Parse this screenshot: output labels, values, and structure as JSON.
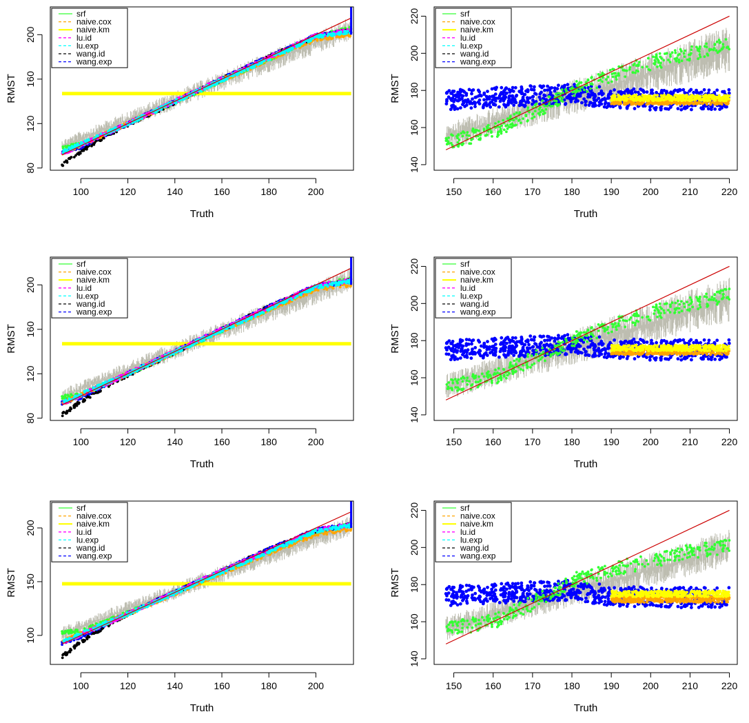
{
  "figure": {
    "description_label": "Six panels of RMST versus Truth",
    "colors": {
      "srf": "#33ff33",
      "naive.cox": "#ffa500",
      "naive.km": "#ffff00",
      "lu.id": "#ff00ff",
      "lu.exp": "#00ffff",
      "wang.id": "#000000",
      "wang.exp": "#0000ff",
      "band": "#bdbdb0",
      "identity": "#cc0000"
    }
  },
  "chart_data": [
    {
      "type": "line",
      "panel": "left-top",
      "xlabel": "Truth",
      "ylabel": "RMST",
      "xlim": [
        87,
        216
      ],
      "ylim": [
        78,
        225
      ],
      "xticks": [
        100,
        120,
        140,
        160,
        180,
        200
      ],
      "yticks": [
        80,
        120,
        160,
        200
      ],
      "legend_position": "top-left",
      "legend": [
        "srf",
        "naive.cox",
        "naive.km",
        "lu.id",
        "lu.exp",
        "wang.id",
        "wang.exp"
      ],
      "band": {
        "x": [
          92,
          215
        ],
        "low_start": 93,
        "low_end": 195,
        "high_start": 106,
        "high_end": 216
      },
      "series": [
        {
          "name": "naive.km",
          "x": [
            92,
            215
          ],
          "values": [
            147,
            147
          ]
        },
        {
          "name": "srf",
          "x": [
            92,
            100,
            120,
            140,
            160,
            180,
            200,
            215
          ],
          "values": [
            99,
            101,
            120,
            139,
            159,
            178,
            198,
            206
          ]
        },
        {
          "name": "wang.id",
          "x": [
            92,
            100,
            110,
            120,
            140,
            160,
            180,
            200,
            215
          ],
          "values": [
            83,
            95,
            108,
            119,
            139,
            160,
            180,
            198,
            204
          ]
        },
        {
          "name": "wang.exp",
          "x": [
            92,
            100,
            120,
            140,
            160,
            180,
            200,
            215
          ],
          "values": [
            94,
            99,
            120,
            140,
            160,
            180,
            199,
            203
          ]
        },
        {
          "name": "naive.cox",
          "x": [
            92,
            120,
            160,
            200,
            215
          ],
          "values": [
            93,
            120,
            159,
            196,
            200
          ]
        },
        {
          "name": "lu.id",
          "x": [
            92,
            120,
            160,
            200,
            215
          ],
          "values": [
            93,
            120,
            160,
            199,
            204
          ]
        },
        {
          "name": "lu.exp",
          "x": [
            92,
            120,
            160,
            200,
            215
          ],
          "values": [
            94,
            120,
            159,
            198,
            203
          ]
        },
        {
          "name": "identity",
          "x": [
            92,
            215
          ],
          "values": [
            92,
            215
          ]
        }
      ]
    },
    {
      "type": "line",
      "panel": "right-top",
      "xlabel": "Truth",
      "ylabel": "RMST",
      "xlim": [
        145,
        222
      ],
      "ylim": [
        137,
        225
      ],
      "xticks": [
        150,
        160,
        170,
        180,
        190,
        200,
        210,
        220
      ],
      "yticks": [
        140,
        160,
        180,
        200,
        220
      ],
      "legend_position": "top-left",
      "legend": [
        "srf",
        "naive.cox",
        "naive.km",
        "lu.id",
        "lu.exp",
        "wang.id",
        "wang.exp"
      ],
      "band": {
        "x": [
          148,
          220
        ],
        "low_start": 148,
        "low_end": 190,
        "high_start": 162,
        "high_end": 215
      },
      "series": [
        {
          "name": "wang.exp",
          "x": [
            148,
            160,
            170,
            180,
            190,
            200,
            210,
            220
          ],
          "values": [
            175,
            176,
            177,
            178,
            176,
            175,
            175,
            175
          ]
        },
        {
          "name": "naive.cox",
          "x": [
            190,
            220
          ],
          "values": [
            174,
            174
          ]
        },
        {
          "name": "naive.km",
          "x": [
            190,
            220
          ],
          "values": [
            176,
            176
          ]
        },
        {
          "name": "srf",
          "x": [
            148,
            160,
            170,
            180,
            190,
            200,
            210,
            220
          ],
          "values": [
            152,
            158,
            168,
            180,
            188,
            195,
            200,
            205
          ]
        },
        {
          "name": "identity",
          "x": [
            148,
            220
          ],
          "values": [
            148,
            220
          ]
        }
      ]
    },
    {
      "type": "line",
      "panel": "left-middle",
      "xlabel": "Truth",
      "ylabel": "RMST",
      "xlim": [
        87,
        216
      ],
      "ylim": [
        78,
        225
      ],
      "xticks": [
        100,
        120,
        140,
        160,
        180,
        200
      ],
      "yticks": [
        80,
        120,
        160,
        200
      ],
      "legend_position": "top-left",
      "legend": [
        "srf",
        "naive.cox",
        "naive.km",
        "lu.id",
        "lu.exp",
        "wang.id",
        "wang.exp"
      ],
      "band": {
        "x": [
          92,
          215
        ],
        "low_start": 93,
        "low_end": 195,
        "high_start": 106,
        "high_end": 216
      },
      "series": [
        {
          "name": "naive.km",
          "x": [
            92,
            215
          ],
          "values": [
            147,
            147
          ]
        },
        {
          "name": "srf",
          "x": [
            92,
            100,
            120,
            140,
            160,
            180,
            200,
            215
          ],
          "values": [
            99,
            101,
            120,
            139,
            159,
            178,
            198,
            206
          ]
        },
        {
          "name": "wang.id",
          "x": [
            92,
            100,
            110,
            120,
            140,
            160,
            180,
            200,
            215
          ],
          "values": [
            83,
            95,
            108,
            119,
            139,
            160,
            180,
            198,
            204
          ]
        },
        {
          "name": "wang.exp",
          "x": [
            92,
            100,
            120,
            140,
            160,
            180,
            200,
            215
          ],
          "values": [
            94,
            99,
            120,
            140,
            160,
            180,
            199,
            203
          ]
        },
        {
          "name": "naive.cox",
          "x": [
            92,
            120,
            160,
            200,
            215
          ],
          "values": [
            93,
            120,
            159,
            196,
            200
          ]
        },
        {
          "name": "lu.id",
          "x": [
            92,
            120,
            160,
            200,
            215
          ],
          "values": [
            93,
            120,
            160,
            199,
            204
          ]
        },
        {
          "name": "lu.exp",
          "x": [
            92,
            120,
            160,
            200,
            215
          ],
          "values": [
            94,
            120,
            159,
            198,
            203
          ]
        },
        {
          "name": "identity",
          "x": [
            92,
            215
          ],
          "values": [
            92,
            215
          ]
        }
      ]
    },
    {
      "type": "line",
      "panel": "right-middle",
      "xlabel": "Truth",
      "ylabel": "RMST",
      "xlim": [
        145,
        222
      ],
      "ylim": [
        137,
        225
      ],
      "xticks": [
        150,
        160,
        170,
        180,
        190,
        200,
        210,
        220
      ],
      "yticks": [
        140,
        160,
        180,
        200,
        220
      ],
      "legend_position": "top-left",
      "legend": [
        "srf",
        "naive.cox",
        "naive.km",
        "lu.id",
        "lu.exp",
        "wang.id",
        "wang.exp"
      ],
      "band": {
        "x": [
          148,
          220
        ],
        "low_start": 148,
        "low_end": 190,
        "high_start": 162,
        "high_end": 215
      },
      "series": [
        {
          "name": "wang.exp",
          "x": [
            148,
            160,
            170,
            180,
            190,
            200,
            210,
            220
          ],
          "values": [
            175,
            176,
            177,
            178,
            176,
            175,
            175,
            175
          ]
        },
        {
          "name": "naive.cox",
          "x": [
            190,
            220
          ],
          "values": [
            174,
            174
          ]
        },
        {
          "name": "naive.km",
          "x": [
            190,
            220
          ],
          "values": [
            176,
            176
          ]
        },
        {
          "name": "srf",
          "x": [
            148,
            160,
            170,
            180,
            190,
            200,
            210,
            220
          ],
          "values": [
            155,
            160,
            170,
            180,
            188,
            195,
            200,
            205
          ]
        },
        {
          "name": "identity",
          "x": [
            148,
            220
          ],
          "values": [
            148,
            220
          ]
        }
      ]
    },
    {
      "type": "line",
      "panel": "left-bottom",
      "xlabel": "Truth",
      "ylabel": "RMST",
      "xlim": [
        87,
        216
      ],
      "ylim": [
        73,
        225
      ],
      "xticks": [
        100,
        120,
        140,
        160,
        180,
        200
      ],
      "yticks": [
        100,
        150,
        200
      ],
      "legend_position": "top-left",
      "legend": [
        "srf",
        "naive.cox",
        "naive.km",
        "lu.id",
        "lu.exp",
        "wang.id",
        "wang.exp"
      ],
      "band": {
        "x": [
          92,
          215
        ],
        "low_start": 95,
        "low_end": 193,
        "high_start": 108,
        "high_end": 212
      },
      "series": [
        {
          "name": "naive.km",
          "x": [
            92,
            215
          ],
          "values": [
            148,
            148
          ]
        },
        {
          "name": "srf",
          "x": [
            92,
            100,
            120,
            140,
            160,
            180,
            200,
            215
          ],
          "values": [
            103,
            104,
            121,
            140,
            159,
            178,
            196,
            204
          ]
        },
        {
          "name": "wang.id",
          "x": [
            92,
            100,
            110,
            120,
            140,
            160,
            180,
            200,
            215
          ],
          "values": [
            80,
            94,
            108,
            120,
            140,
            160,
            180,
            197,
            203
          ]
        },
        {
          "name": "wang.exp",
          "x": [
            92,
            100,
            120,
            140,
            160,
            180,
            200,
            215
          ],
          "values": [
            93,
            99,
            120,
            140,
            160,
            180,
            198,
            203
          ]
        },
        {
          "name": "naive.cox",
          "x": [
            92,
            120,
            160,
            200,
            215
          ],
          "values": [
            94,
            120,
            158,
            194,
            199
          ]
        },
        {
          "name": "lu.id",
          "x": [
            92,
            120,
            160,
            200,
            215
          ],
          "values": [
            93,
            120,
            160,
            198,
            203
          ]
        },
        {
          "name": "lu.exp",
          "x": [
            92,
            120,
            160,
            200,
            215
          ],
          "values": [
            94,
            120,
            159,
            197,
            202
          ]
        },
        {
          "name": "identity",
          "x": [
            92,
            215
          ],
          "values": [
            92,
            215
          ]
        }
      ]
    },
    {
      "type": "line",
      "panel": "right-bottom",
      "xlabel": "Truth",
      "ylabel": "RMST",
      "xlim": [
        145,
        222
      ],
      "ylim": [
        137,
        225
      ],
      "xticks": [
        150,
        160,
        170,
        180,
        190,
        200,
        210,
        220
      ],
      "yticks": [
        140,
        160,
        180,
        200,
        220
      ],
      "legend_position": "top-left",
      "legend": [
        "srf",
        "naive.cox",
        "naive.km",
        "lu.id",
        "lu.exp",
        "wang.id",
        "wang.exp"
      ],
      "band": {
        "x": [
          148,
          220
        ],
        "low_start": 150,
        "low_end": 190,
        "high_start": 163,
        "high_end": 210
      },
      "series": [
        {
          "name": "wang.exp",
          "x": [
            148,
            160,
            170,
            180,
            190,
            200,
            210,
            220
          ],
          "values": [
            174,
            175,
            176,
            177,
            174,
            173,
            173,
            173
          ]
        },
        {
          "name": "naive.cox",
          "x": [
            190,
            220
          ],
          "values": [
            172,
            172
          ]
        },
        {
          "name": "naive.km",
          "x": [
            190,
            220
          ],
          "values": [
            175,
            175
          ]
        },
        {
          "name": "srf",
          "x": [
            148,
            160,
            170,
            180,
            190,
            200,
            210,
            220
          ],
          "values": [
            156,
            160,
            170,
            182,
            188,
            193,
            198,
            201
          ]
        },
        {
          "name": "identity",
          "x": [
            148,
            220
          ],
          "values": [
            148,
            220
          ]
        }
      ]
    }
  ]
}
